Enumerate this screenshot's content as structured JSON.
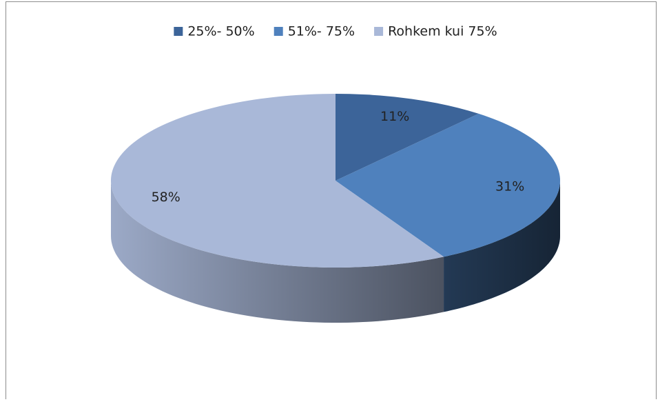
{
  "chart_data": {
    "type": "pie",
    "three_d": true,
    "categories": [
      "25%- 50%",
      "51%- 75%",
      "Rohkem kui 75%"
    ],
    "values": [
      11,
      31,
      58
    ],
    "value_labels": [
      "11%",
      "31%",
      "58%"
    ],
    "colors": [
      "#3c6499",
      "#4f81bd",
      "#a9b8d8"
    ],
    "legend": "top"
  }
}
